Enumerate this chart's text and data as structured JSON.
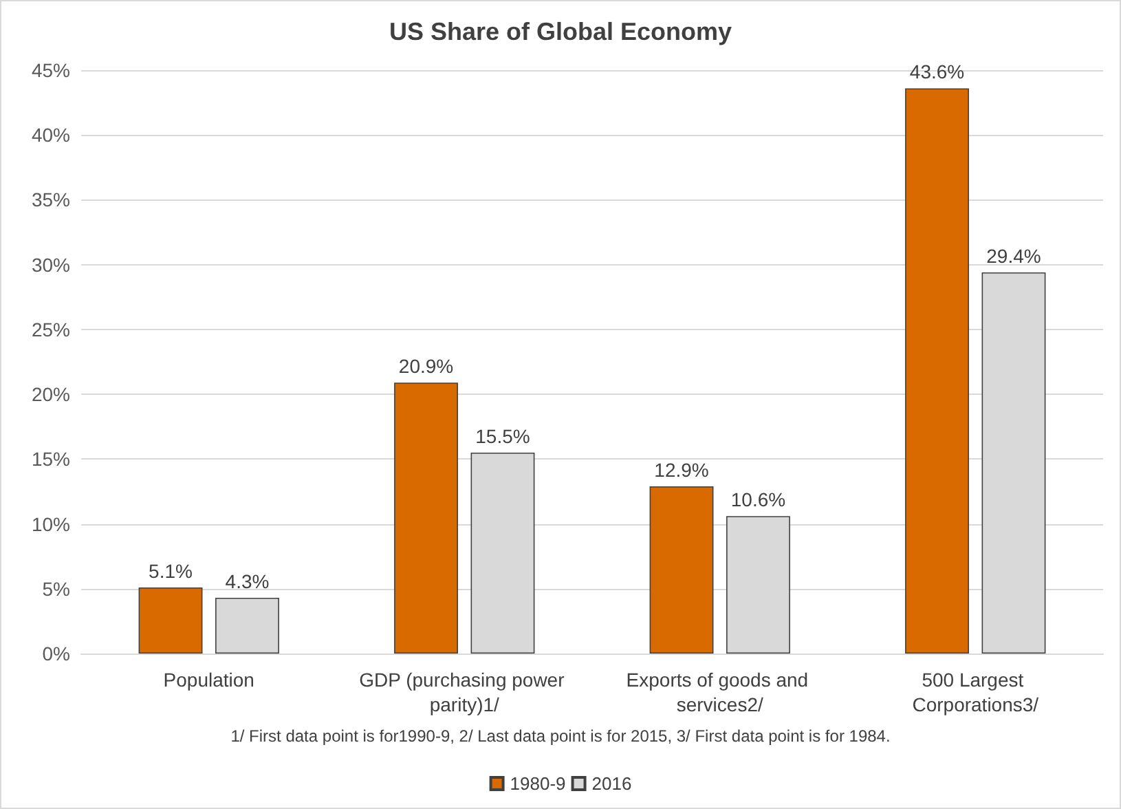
{
  "chart_data": {
    "type": "bar",
    "title": "US Share of Global Economy",
    "categories": [
      "Population",
      "GDP (purchasing power parity)1/",
      "Exports of goods and services2/",
      "500 Largest Corporations3/"
    ],
    "series": [
      {
        "name": "1980-9",
        "color": "#d86a00",
        "values": [
          5.1,
          20.9,
          12.9,
          43.6
        ],
        "value_labels": [
          "5.1%",
          "20.9%",
          "12.9%",
          "43.6%"
        ]
      },
      {
        "name": "2016",
        "color": "#d9d9d9",
        "values": [
          4.3,
          15.5,
          10.6,
          29.4
        ],
        "value_labels": [
          "4.3%",
          "15.5%",
          "10.6%",
          "29.4%"
        ]
      }
    ],
    "ylim": [
      0,
      45
    ],
    "yticks": [
      {
        "value": 0,
        "label": "0%"
      },
      {
        "value": 5,
        "label": "5%"
      },
      {
        "value": 10,
        "label": "10%"
      },
      {
        "value": 15,
        "label": "15%"
      },
      {
        "value": 20,
        "label": "20%"
      },
      {
        "value": 25,
        "label": "25%"
      },
      {
        "value": 30,
        "label": "30%"
      },
      {
        "value": 35,
        "label": "35%"
      },
      {
        "value": 40,
        "label": "40%"
      },
      {
        "value": 45,
        "label": "45%"
      }
    ],
    "annotations": [
      "1/ First data point is for1990-9, 2/ Last data point is for 2015, 3/ First data point is for 1984."
    ],
    "grid": "y",
    "legend": "bottom"
  }
}
